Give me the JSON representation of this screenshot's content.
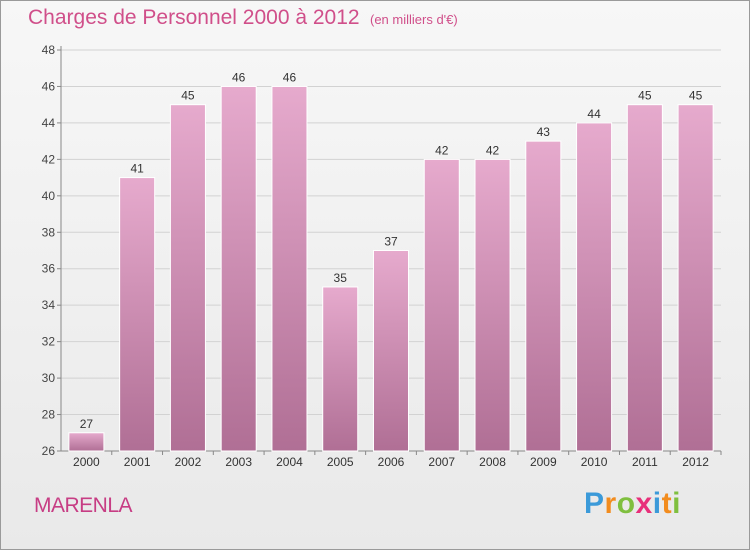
{
  "chart_data": {
    "type": "bar",
    "title": "Charges de Personnel 2000 à 2012",
    "subtitle": "(en milliers d'€)",
    "categories": [
      "2000",
      "2001",
      "2002",
      "2003",
      "2004",
      "2005",
      "2006",
      "2007",
      "2008",
      "2009",
      "2010",
      "2011",
      "2012"
    ],
    "values": [
      27,
      41,
      45,
      46,
      46,
      35,
      37,
      42,
      42,
      43,
      44,
      45,
      45
    ],
    "ylim": [
      26,
      48
    ],
    "yticks": [
      26,
      28,
      30,
      32,
      34,
      36,
      38,
      40,
      42,
      44,
      46,
      48
    ],
    "grid": true,
    "bar_color": "#d48fb3"
  },
  "commune": "MARENLA",
  "logo": {
    "letters": [
      "P",
      "r",
      "o",
      "x",
      "i",
      "t",
      "i"
    ],
    "colors": [
      "#3b9ad9",
      "#f28c1e",
      "#7fbf3f",
      "#e8307a",
      "#3b9ad9",
      "#f28c1e",
      "#7fbf3f"
    ]
  }
}
